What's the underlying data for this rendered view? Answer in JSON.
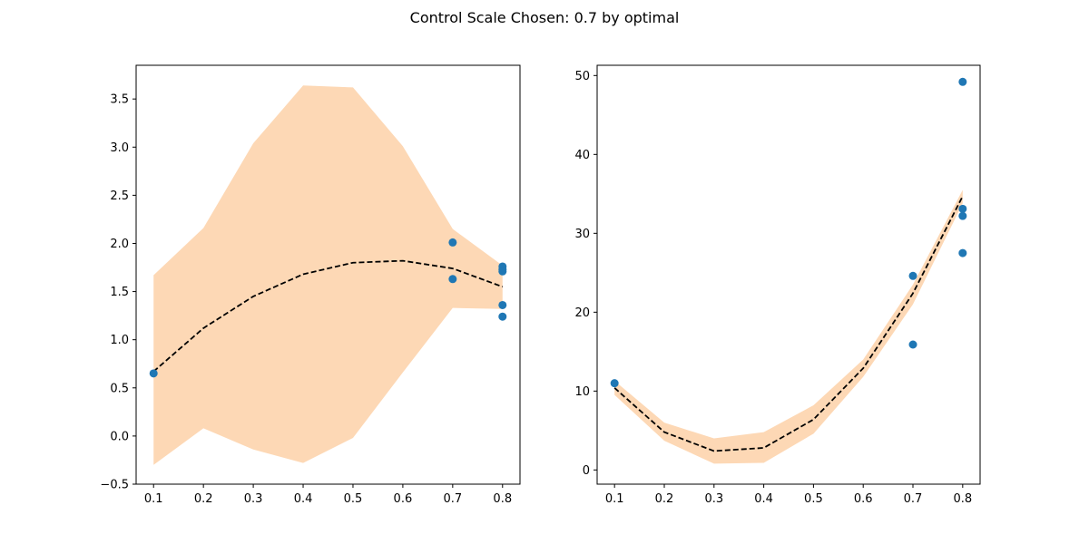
{
  "figure": {
    "suptitle": "Control Scale Chosen: 0.7 by optimal"
  },
  "chart_data": [
    {
      "type": "line",
      "title": "",
      "xlabel": "",
      "ylabel": "",
      "xlim": [
        0.065,
        0.835
      ],
      "ylim": [
        -0.5,
        3.85
      ],
      "xticks": [
        0.1,
        0.2,
        0.3,
        0.4,
        0.5,
        0.6,
        0.7,
        0.8
      ],
      "yticks": [
        -0.5,
        0.0,
        0.5,
        1.0,
        1.5,
        2.0,
        2.5,
        3.0,
        3.5
      ],
      "grid": false,
      "series": [
        {
          "kind": "band",
          "color": "#fdd8b5",
          "x": [
            0.1,
            0.2,
            0.3,
            0.4,
            0.5,
            0.6,
            0.7,
            0.8
          ],
          "upper": [
            1.67,
            2.16,
            3.04,
            3.64,
            3.62,
            3.01,
            2.15,
            1.77
          ],
          "lower": [
            -0.3,
            0.08,
            -0.14,
            -0.28,
            -0.02,
            0.66,
            1.33,
            1.32
          ]
        },
        {
          "kind": "line",
          "style": "dashed",
          "color": "#000000",
          "x": [
            0.1,
            0.2,
            0.3,
            0.4,
            0.5,
            0.6,
            0.7,
            0.8
          ],
          "y": [
            0.67,
            1.12,
            1.45,
            1.68,
            1.8,
            1.82,
            1.74,
            1.55
          ]
        },
        {
          "kind": "scatter",
          "color": "#1f77b4",
          "x": [
            0.1,
            0.7,
            0.7,
            0.8,
            0.8,
            0.8,
            0.8,
            0.8
          ],
          "y": [
            0.65,
            2.01,
            1.63,
            1.76,
            1.73,
            1.71,
            1.36,
            1.24
          ]
        }
      ]
    },
    {
      "type": "line",
      "title": "",
      "xlabel": "",
      "ylabel": "",
      "xlim": [
        0.065,
        0.835
      ],
      "ylim": [
        -1.8,
        51.3
      ],
      "xticks": [
        0.1,
        0.2,
        0.3,
        0.4,
        0.5,
        0.6,
        0.7,
        0.8
      ],
      "yticks": [
        0,
        10,
        20,
        30,
        40,
        50
      ],
      "grid": false,
      "series": [
        {
          "kind": "band",
          "color": "#fdd8b5",
          "x": [
            0.1,
            0.2,
            0.3,
            0.4,
            0.5,
            0.6,
            0.7,
            0.8
          ],
          "upper": [
            11.3,
            6.0,
            4.0,
            4.8,
            8.2,
            14.0,
            23.5,
            35.5
          ],
          "lower": [
            9.5,
            3.7,
            0.8,
            0.9,
            4.6,
            11.8,
            21.0,
            33.8
          ]
        },
        {
          "kind": "line",
          "style": "dashed",
          "color": "#000000",
          "x": [
            0.1,
            0.2,
            0.3,
            0.4,
            0.5,
            0.6,
            0.7,
            0.8
          ],
          "y": [
            10.4,
            4.8,
            2.4,
            2.8,
            6.4,
            12.9,
            22.4,
            34.7
          ]
        },
        {
          "kind": "scatter",
          "color": "#1f77b4",
          "x": [
            0.1,
            0.7,
            0.7,
            0.8,
            0.8,
            0.8,
            0.8
          ],
          "y": [
            11.0,
            24.6,
            15.9,
            49.2,
            33.1,
            32.2,
            27.5
          ]
        }
      ]
    }
  ]
}
